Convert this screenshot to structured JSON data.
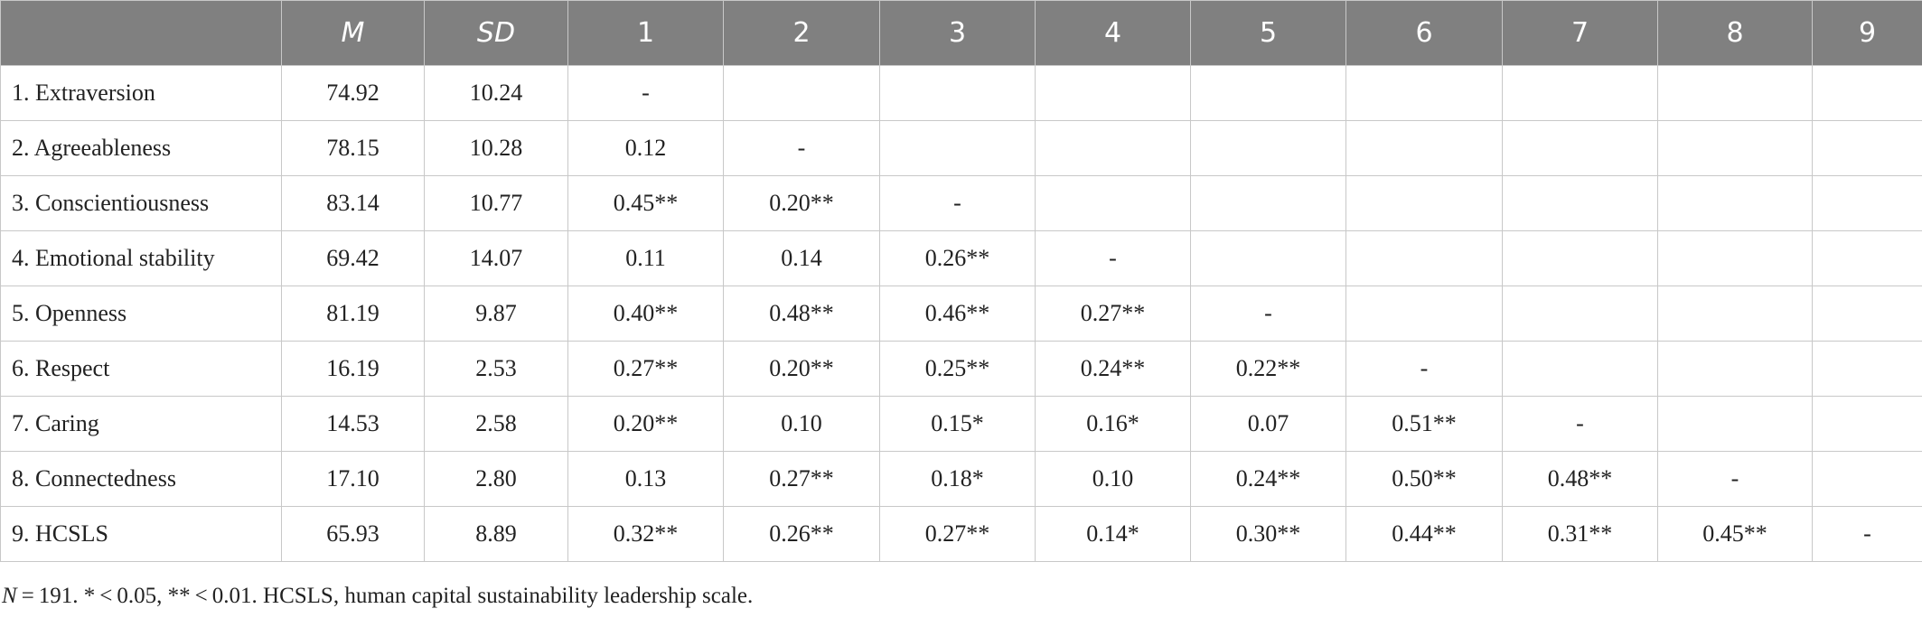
{
  "table": {
    "header": [
      "M",
      "SD",
      "1",
      "2",
      "3",
      "4",
      "5",
      "6",
      "7",
      "8",
      "9"
    ],
    "rows": [
      [
        "1. Extraversion",
        "74.92",
        "10.24",
        "-",
        null,
        null,
        null,
        null,
        null,
        null,
        null,
        null
      ],
      [
        "2. Agreeableness",
        "78.15",
        "10.28",
        "0.12",
        "-",
        null,
        null,
        null,
        null,
        null,
        null,
        null
      ],
      [
        "3. Conscientiousness",
        "83.14",
        "10.77",
        "0.45**",
        "0.20**",
        "-",
        null,
        null,
        null,
        null,
        null,
        null
      ],
      [
        "4. Emotional stability",
        "69.42",
        "14.07",
        "0.11",
        "0.14",
        "0.26**",
        "-",
        null,
        null,
        null,
        null,
        null
      ],
      [
        "5. Openness",
        "81.19",
        "9.87",
        "0.40**",
        "0.48**",
        "0.46**",
        "0.27**",
        "-",
        null,
        null,
        null,
        null
      ],
      [
        "6. Respect",
        "16.19",
        "2.53",
        "0.27**",
        "0.20**",
        "0.25**",
        "0.24**",
        "0.22**",
        "-",
        null,
        null,
        null
      ],
      [
        "7. Caring",
        "14.53",
        "2.58",
        "0.20**",
        "0.10",
        "0.15*",
        "0.16*",
        "0.07",
        "0.51**",
        "-",
        null,
        null
      ],
      [
        "8. Connectedness",
        "17.10",
        "2.80",
        "0.13",
        "0.27**",
        "0.18*",
        "0.10",
        "0.24**",
        "0.50**",
        "0.48**",
        "-",
        null
      ],
      [
        "9. HCSLS",
        "65.93",
        "8.89",
        "0.32**",
        "0.26**",
        "0.27**",
        "0.14*",
        "0.30**",
        "0.44**",
        "0.31**",
        "0.45**",
        "-"
      ]
    ]
  },
  "note": {
    "symbol": "N",
    "text": " = 191. * < 0.05, ** < 0.01. HCSLS, human capital sustainability leadership scale."
  }
}
